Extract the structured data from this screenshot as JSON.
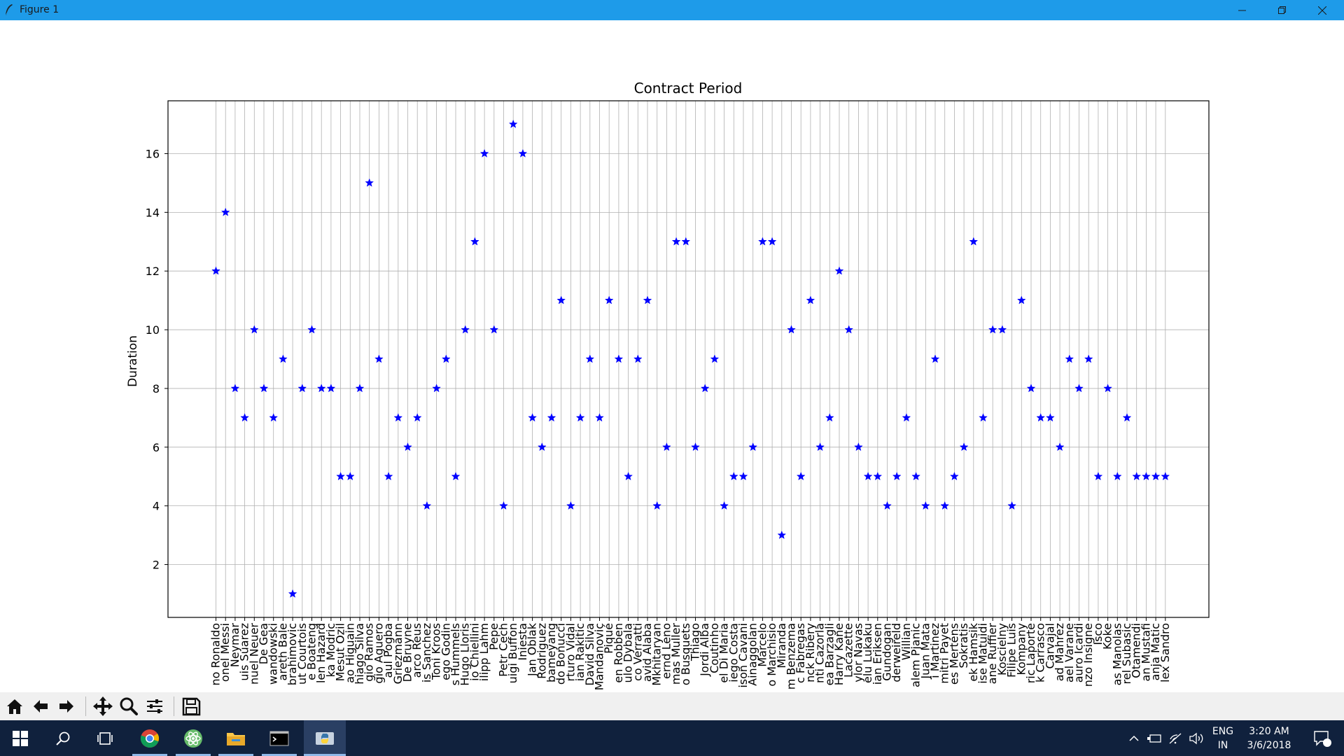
{
  "window": {
    "title": "Figure 1"
  },
  "chart_data": {
    "type": "scatter",
    "title": "Contract Period",
    "xlabel": "",
    "ylabel": "Duration",
    "marker": "*",
    "color": "#0000ff",
    "grid": true,
    "ylim": [
      0.2,
      17.8
    ],
    "yticks": [
      2,
      4,
      6,
      8,
      10,
      12,
      14,
      16
    ],
    "categories": [
      "no Ronaldo",
      "onel Messi",
      "Neymar",
      "uis Suarez",
      "nuel Neuer",
      "De Gea",
      "wandowski",
      "areth Bale",
      "brahimovic",
      "ut Courtois",
      "e Boateng",
      "len Hazard",
      "ka Modric",
      "Mesut Ozil",
      "ao Higuain",
      "hiago Silva",
      "gio Ramos",
      "gio Aguero",
      "aul Pogba",
      "Griezmann",
      "De Bruyne",
      "arco Reus",
      "is Sanchez",
      "Toni Kroos",
      "ego Godin",
      "s Hummels",
      "Hugo Lloris",
      "io Chiellini",
      "ilipp Lahm",
      "Pepe",
      "Petr Cech",
      "uigi Buffon",
      "Iniesta",
      "Jan Oblak",
      "Rodriguez",
      "bameyang",
      "do Bonucci",
      "rturo Vidal",
      "ian Rakitic",
      "David Silva",
      "Mandanovic",
      "Piqué",
      "en Robben",
      "ulo Dybala",
      "co Verratti",
      "avid Alaba",
      "Mkhitaryan",
      "ernd Leno",
      "mas Muller",
      "o Busquets",
      "Thiago",
      "Jordi Alba",
      "Coutinho",
      "el Di Maria",
      "iego Costa",
      "ison Cavani",
      "Ainaggolan",
      "Marcelo",
      "o Marchisio",
      "Miranda",
      "m Benzema",
      "c Fabregas",
      "nck Ribery",
      "nti Cazorla",
      "ea Barzagli",
      "Harry Kane",
      "Lacazette",
      "ylor Navas",
      "elu Lukaku",
      "ian Eriksen",
      "Gundogan",
      "derweireld",
      "Willian",
      "alem Pjanic",
      "Juan Mata",
      "i Martinez",
      "mitri Payet",
      "es Mertens",
      "Sokratis",
      "ek Hamsik",
      "ise Matuidi",
      "ane Ruffier",
      "Koscielny",
      "Filipe Luis",
      "Kompany",
      "ric Laporte",
      "k Carrasco",
      "Carvajal",
      "ad Mahrez",
      "ael Varane",
      "auro Icardi",
      "nzo Insigne",
      "Isco",
      "Koke",
      "as Manolas",
      "rel Subasic",
      "Otamendi",
      "an Mustafi",
      "anja Matic",
      "lex Sandro"
    ],
    "values": [
      12,
      14,
      8,
      7,
      10,
      8,
      7,
      9,
      1,
      8,
      10,
      8,
      8,
      5,
      5,
      8,
      15,
      9,
      5,
      7,
      6,
      7,
      4,
      8,
      9,
      5,
      10,
      13,
      16,
      10,
      4,
      17,
      16,
      7,
      6,
      7,
      11,
      4,
      7,
      9,
      7,
      11,
      9,
      5,
      9,
      11,
      4,
      6,
      13,
      13,
      6,
      8,
      9,
      4,
      5,
      5,
      6,
      13,
      13,
      3,
      10,
      5,
      11,
      6,
      7,
      12,
      10,
      6,
      5,
      5,
      4,
      5,
      7,
      5,
      4,
      9,
      4,
      5,
      6,
      13,
      7,
      10,
      10,
      4,
      11,
      8,
      7,
      7,
      6,
      9,
      8,
      9,
      5,
      8,
      5,
      7,
      5,
      5,
      5,
      5
    ]
  },
  "toolbar": {
    "buttons": [
      {
        "name": "home-icon",
        "label": "Home"
      },
      {
        "name": "back-icon",
        "label": "Back"
      },
      {
        "name": "forward-icon",
        "label": "Forward"
      },
      {
        "name": "pan-icon",
        "label": "Pan"
      },
      {
        "name": "zoom-icon",
        "label": "Zoom"
      },
      {
        "name": "configure-icon",
        "label": "Configure subplots"
      },
      {
        "name": "save-icon",
        "label": "Save"
      }
    ]
  },
  "taskbar": {
    "language": "ENG",
    "region": "IN",
    "time": "3:20 AM",
    "date": "3/6/2018",
    "notification_count": "1"
  }
}
